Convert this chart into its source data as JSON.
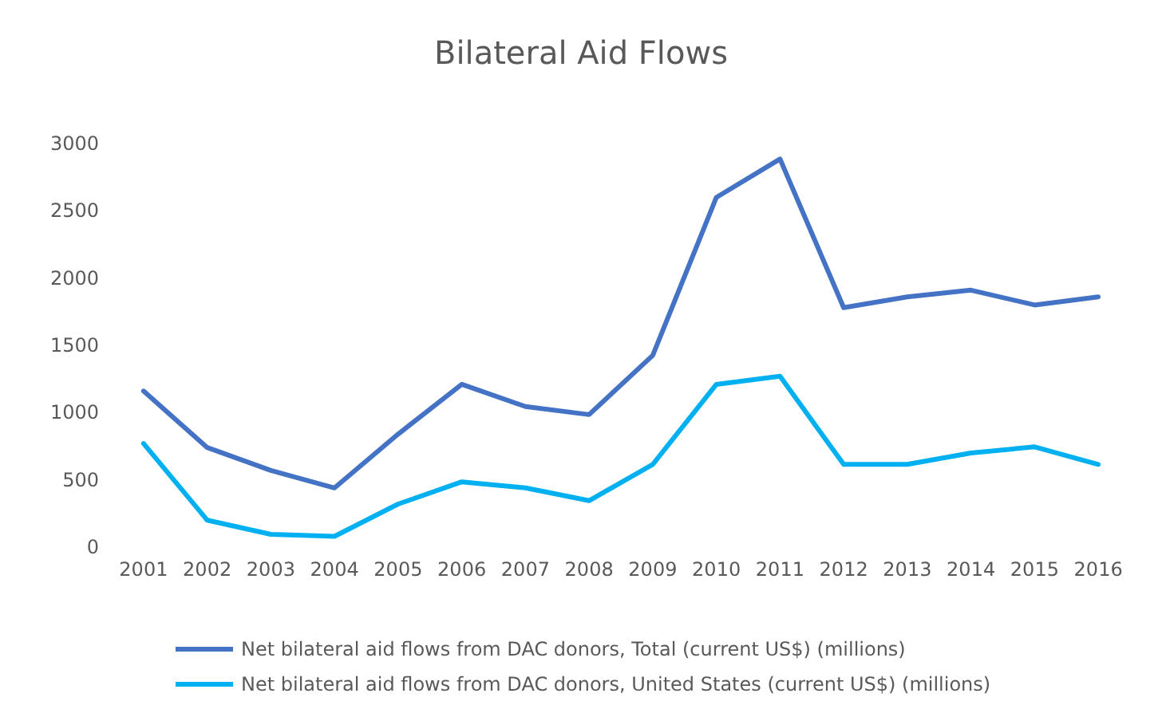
{
  "chart_data": {
    "type": "line",
    "title": "Bilateral Aid Flows",
    "categories": [
      "2001",
      "2002",
      "2003",
      "2004",
      "2005",
      "2006",
      "2007",
      "2008",
      "2009",
      "2010",
      "2011",
      "2012",
      "2013",
      "2014",
      "2015",
      "2016"
    ],
    "series": [
      {
        "name": "Net bilateral aid flows from DAC donors, Total (current US$) (millions)",
        "color": "#4472c4",
        "values": [
          1160,
          740,
          570,
          440,
          840,
          1210,
          1045,
          985,
          1425,
          2600,
          2885,
          1780,
          1860,
          1910,
          1800,
          1860
        ]
      },
      {
        "name": "Net bilateral aid flows from DAC donors, United States (current US$) (millions)",
        "color": "#00b0f0",
        "values": [
          770,
          200,
          95,
          80,
          320,
          485,
          440,
          345,
          615,
          1210,
          1270,
          615,
          615,
          700,
          745,
          615
        ]
      }
    ],
    "ylim": [
      0,
      3000
    ],
    "yticks": [
      0,
      500,
      1000,
      1500,
      2000,
      2500,
      3000
    ],
    "grid": false,
    "legend": "bottom",
    "marker": "none",
    "line_style": "solid"
  }
}
